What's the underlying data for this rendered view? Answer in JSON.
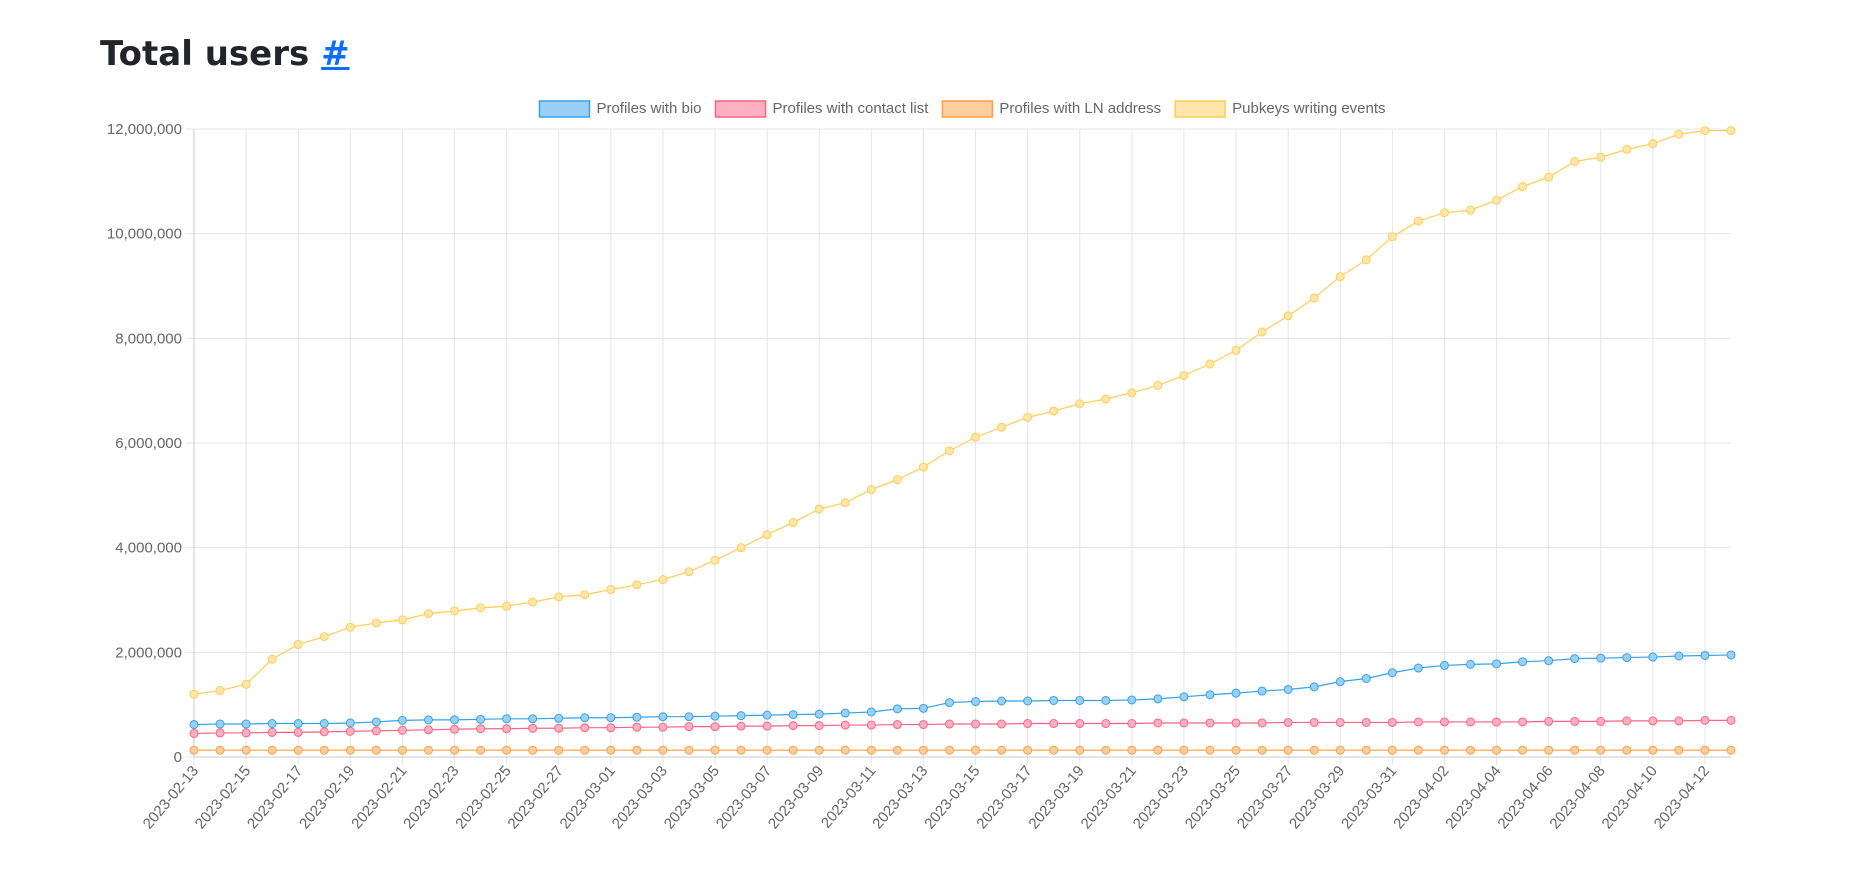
{
  "page": {
    "title": "Total users",
    "anchor": "#"
  },
  "chart_data": {
    "type": "line",
    "title": "",
    "xlabel": "",
    "ylabel": "",
    "ylim": [
      0,
      12000000
    ],
    "yticks": [
      "0",
      "2,000,000",
      "4,000,000",
      "6,000,000",
      "8,000,000",
      "10,000,000",
      "12,000,000"
    ],
    "grid": true,
    "legend_position": "top-center",
    "x": [
      "2023-02-13",
      "2023-02-14",
      "2023-02-15",
      "2023-02-16",
      "2023-02-17",
      "2023-02-18",
      "2023-02-19",
      "2023-02-20",
      "2023-02-21",
      "2023-02-22",
      "2023-02-23",
      "2023-02-24",
      "2023-02-25",
      "2023-02-26",
      "2023-02-27",
      "2023-02-28",
      "2023-03-01",
      "2023-03-02",
      "2023-03-03",
      "2023-03-04",
      "2023-03-05",
      "2023-03-06",
      "2023-03-07",
      "2023-03-08",
      "2023-03-09",
      "2023-03-10",
      "2023-03-11",
      "2023-03-12",
      "2023-03-13",
      "2023-03-14",
      "2023-03-15",
      "2023-03-16",
      "2023-03-17",
      "2023-03-18",
      "2023-03-19",
      "2023-03-20",
      "2023-03-21",
      "2023-03-22",
      "2023-03-23",
      "2023-03-24",
      "2023-03-25",
      "2023-03-26",
      "2023-03-27",
      "2023-03-28",
      "2023-03-29",
      "2023-03-30",
      "2023-03-31",
      "2023-04-01",
      "2023-04-02",
      "2023-04-03",
      "2023-04-04",
      "2023-04-05",
      "2023-04-06",
      "2023-04-07",
      "2023-04-08",
      "2023-04-09",
      "2023-04-10",
      "2023-04-11",
      "2023-04-12",
      "2023-04-13"
    ],
    "x_tick_labels": [
      "2023-02-13",
      "2023-02-15",
      "2023-02-17",
      "2023-02-19",
      "2023-02-21",
      "2023-02-23",
      "2023-02-25",
      "2023-02-27",
      "2023-03-01",
      "2023-03-03",
      "2023-03-05",
      "2023-03-07",
      "2023-03-09",
      "2023-03-11",
      "2023-03-13",
      "2023-03-15",
      "2023-03-17",
      "2023-03-19",
      "2023-03-21",
      "2023-03-23",
      "2023-03-25",
      "2023-03-27",
      "2023-03-29",
      "2023-03-31",
      "2023-04-02",
      "2023-04-04",
      "2023-04-06",
      "2023-04-08",
      "2023-04-10",
      "2023-04-12"
    ],
    "series": [
      {
        "name": "Profiles with bio",
        "color": "#36a2eb",
        "fill": "#9ad0f5",
        "values": [
          620000,
          630000,
          630000,
          640000,
          640000,
          640000,
          650000,
          670000,
          700000,
          710000,
          710000,
          720000,
          730000,
          730000,
          740000,
          750000,
          750000,
          760000,
          770000,
          770000,
          780000,
          790000,
          800000,
          810000,
          820000,
          840000,
          860000,
          920000,
          930000,
          1040000,
          1060000,
          1070000,
          1070000,
          1080000,
          1080000,
          1080000,
          1090000,
          1110000,
          1150000,
          1190000,
          1220000,
          1260000,
          1290000,
          1340000,
          1440000,
          1500000,
          1610000,
          1700000,
          1750000,
          1770000,
          1780000,
          1820000,
          1840000,
          1880000,
          1890000,
          1900000,
          1910000,
          1930000,
          1940000,
          1950000
        ]
      },
      {
        "name": "Profiles with contact list",
        "color": "#ff6384",
        "fill": "#ffb1c1",
        "values": [
          450000,
          460000,
          460000,
          470000,
          470000,
          480000,
          490000,
          500000,
          510000,
          520000,
          530000,
          540000,
          540000,
          550000,
          550000,
          560000,
          560000,
          570000,
          570000,
          580000,
          580000,
          590000,
          590000,
          600000,
          600000,
          610000,
          610000,
          620000,
          620000,
          630000,
          630000,
          630000,
          640000,
          640000,
          640000,
          640000,
          640000,
          650000,
          650000,
          650000,
          650000,
          650000,
          660000,
          660000,
          660000,
          660000,
          660000,
          670000,
          670000,
          670000,
          670000,
          670000,
          680000,
          680000,
          680000,
          690000,
          690000,
          690000,
          700000,
          700000
        ]
      },
      {
        "name": "Profiles with LN address",
        "color": "#ff9f40",
        "fill": "#ffcf9f",
        "values": [
          130000,
          130000,
          130000,
          130000,
          130000,
          130000,
          130000,
          130000,
          130000,
          130000,
          130000,
          130000,
          130000,
          130000,
          130000,
          130000,
          130000,
          130000,
          130000,
          130000,
          130000,
          130000,
          130000,
          130000,
          130000,
          130000,
          130000,
          130000,
          130000,
          130000,
          130000,
          130000,
          130000,
          130000,
          130000,
          130000,
          130000,
          130000,
          130000,
          130000,
          130000,
          130000,
          130000,
          130000,
          130000,
          130000,
          130000,
          130000,
          130000,
          130000,
          130000,
          130000,
          130000,
          130000,
          130000,
          130000,
          130000,
          130000,
          130000,
          130000
        ]
      },
      {
        "name": "Pubkeys writing events",
        "color": "#ffcd56",
        "fill": "#ffe6aa",
        "values": [
          1200000,
          1270000,
          1390000,
          1870000,
          2150000,
          2300000,
          2480000,
          2560000,
          2620000,
          2740000,
          2790000,
          2850000,
          2880000,
          2960000,
          3060000,
          3100000,
          3200000,
          3290000,
          3390000,
          3540000,
          3760000,
          4000000,
          4250000,
          4480000,
          4740000,
          4860000,
          5110000,
          5300000,
          5540000,
          5850000,
          6110000,
          6300000,
          6490000,
          6610000,
          6750000,
          6840000,
          6960000,
          7100000,
          7290000,
          7510000,
          7770000,
          8120000,
          8430000,
          8770000,
          9180000,
          9500000,
          9940000,
          10240000,
          10400000,
          10450000,
          10640000,
          10900000,
          11080000,
          11380000,
          11460000,
          11610000,
          11720000,
          11900000,
          11970000,
          11970000
        ]
      }
    ]
  }
}
